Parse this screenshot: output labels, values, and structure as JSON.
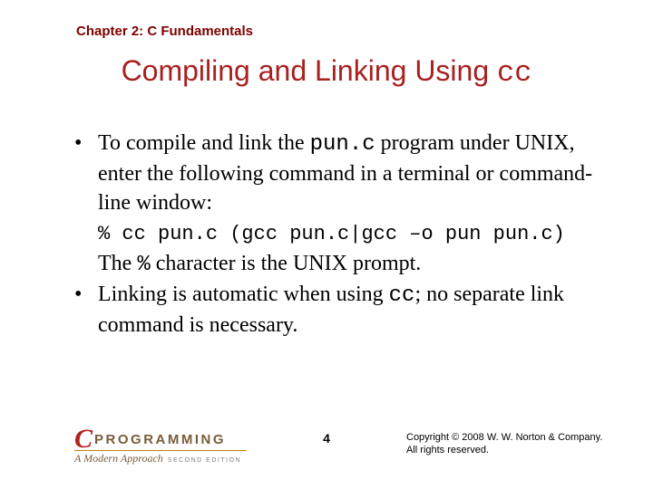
{
  "colors": {
    "chapter_color": "#800000",
    "title_color": "#a92020",
    "body_color": "#000000",
    "logo_c_color": "#b22222",
    "logo_programming_color": "#7a5c3a",
    "logo_line_color": "#b8860b",
    "logo_sub_color": "#7a5c3a",
    "logo_edition_color": "#808080",
    "copyright_color": "#000000"
  },
  "chapter": "Chapter 2: C Fundamentals",
  "title_prefix": "Compiling and Linking Using ",
  "title_code": "cc",
  "bullet1": {
    "part1": "To compile and link the ",
    "code1": "pun.c",
    "part2": " program under UNIX, enter the following command in a terminal or command-line window:"
  },
  "codeline": "% cc pun.c (gcc pun.c|gcc –o pun pun.c)",
  "cont": {
    "part1": "The ",
    "code1": "%",
    "part2": " character is the UNIX prompt."
  },
  "bullet2": {
    "part1": "Linking is automatic when using ",
    "code1": "cc",
    "part2": "; no separate link command is necessary."
  },
  "logo": {
    "c": "C",
    "programming": "PROGRAMMING",
    "sub": "A Modern Approach",
    "edition": "SECOND EDITION"
  },
  "page": "4",
  "copyright_line1": "Copyright © 2008 W. W. Norton & Company.",
  "copyright_line2": "All rights reserved."
}
